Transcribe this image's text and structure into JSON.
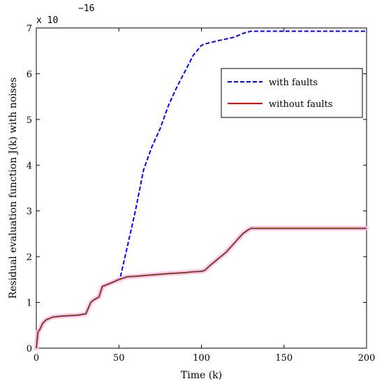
{
  "chart_data": {
    "type": "line",
    "title": "",
    "xlabel": "Time (k)",
    "ylabel": "Residual evaluation function J(k) with noises",
    "y_multiplier": {
      "base": "x 10",
      "exponent": "−16"
    },
    "xlim": [
      0,
      200
    ],
    "ylim": [
      0,
      7
    ],
    "x_ticks": [
      0,
      50,
      100,
      150,
      200
    ],
    "y_ticks": [
      0,
      1,
      2,
      3,
      4,
      5,
      6,
      7
    ],
    "grid": false,
    "legend_position": "top-right",
    "series": [
      {
        "name": "with faults",
        "color": "#0000ff",
        "style": "dashed",
        "x": [
          0,
          1,
          2,
          4,
          6,
          10,
          15,
          20,
          25,
          30,
          33,
          35,
          38,
          40,
          45,
          50,
          51,
          55,
          60,
          65,
          70,
          75,
          80,
          85,
          90,
          95,
          100,
          102,
          110,
          120,
          125,
          130,
          140,
          150,
          160,
          170,
          180,
          190,
          200
        ],
        "y": [
          0,
          0.35,
          0.4,
          0.55,
          0.62,
          0.68,
          0.7,
          0.71,
          0.72,
          0.75,
          1.0,
          1.06,
          1.12,
          1.35,
          1.42,
          1.52,
          1.57,
          2.2,
          3.0,
          3.9,
          4.4,
          4.8,
          5.3,
          5.7,
          6.05,
          6.4,
          6.62,
          6.65,
          6.72,
          6.8,
          6.88,
          6.93,
          6.93,
          6.93,
          6.93,
          6.93,
          6.93,
          6.93,
          6.93
        ]
      },
      {
        "name": "without faults",
        "color": "#ff0000",
        "style": "solid",
        "x": [
          0,
          1,
          2,
          4,
          6,
          10,
          15,
          20,
          25,
          30,
          33,
          35,
          38,
          40,
          45,
          50,
          55,
          60,
          70,
          80,
          90,
          95,
          100,
          102,
          105,
          110,
          115,
          120,
          125,
          128,
          130,
          140,
          150,
          160,
          170,
          180,
          190,
          200
        ],
        "y": [
          0,
          0.35,
          0.4,
          0.55,
          0.62,
          0.68,
          0.7,
          0.71,
          0.72,
          0.75,
          1.0,
          1.06,
          1.12,
          1.35,
          1.42,
          1.5,
          1.56,
          1.57,
          1.6,
          1.63,
          1.65,
          1.67,
          1.68,
          1.7,
          1.8,
          1.95,
          2.1,
          2.3,
          2.5,
          2.58,
          2.62,
          2.62,
          2.62,
          2.62,
          2.62,
          2.62,
          2.62,
          2.62
        ]
      }
    ]
  }
}
